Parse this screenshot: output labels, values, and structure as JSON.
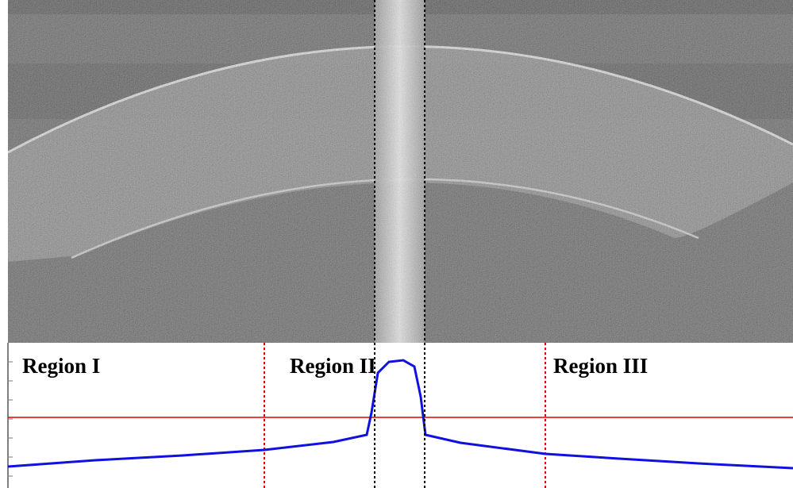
{
  "regions": {
    "labels": [
      "Region I",
      "Region II",
      "Region III"
    ]
  }
}
